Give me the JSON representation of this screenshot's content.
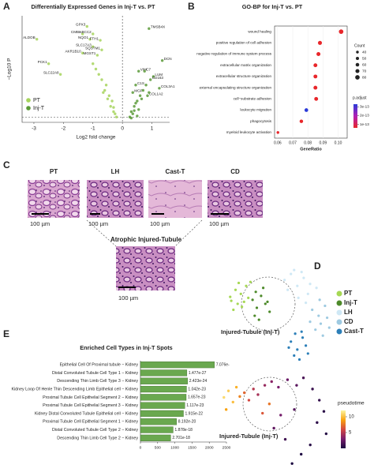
{
  "panel_labels": [
    "A",
    "B",
    "C",
    "D",
    "E"
  ],
  "histology": {
    "labels": [
      "PT",
      "LH",
      "Cast-T",
      "CD"
    ],
    "scale_label": "100 µm",
    "injured_title": "Atrophic Injured-Tubule"
  },
  "chart_data": [
    {
      "type": "volcano",
      "title": "Differentially Expressed Genes in Inj-T vs. PT",
      "x_label": "Log2 fold change",
      "y_label": "−Log10 P",
      "xlim": [
        -3.4,
        1.6
      ],
      "ylim": [
        0,
        100
      ],
      "xticks": [
        -3,
        -2,
        -1,
        0,
        1
      ],
      "hline": 5,
      "vline": 0,
      "legend": "lower left",
      "series": [
        {
          "name": "PT",
          "color": "#a6d45c",
          "x": [
            -2.9,
            -2.5,
            -2.1,
            -1.2,
            -1.35,
            -1.0,
            -1.1,
            -0.75,
            -1.0,
            -0.7,
            -1.35,
            -0.85,
            -0.6,
            -0.5,
            -0.4,
            -0.3,
            -0.7,
            -0.9,
            -0.55,
            -0.35,
            -0.25,
            -0.8,
            -0.45,
            -0.2,
            -1.0,
            -0.65,
            -0.3
          ],
          "values": [
            78,
            55,
            45,
            90,
            83,
            83,
            78,
            77,
            71,
            68,
            65,
            63,
            30,
            22,
            15,
            10,
            40,
            50,
            35,
            20,
            8,
            45,
            25,
            5,
            55,
            28,
            14
          ],
          "labels": [
            "ALDOB",
            "PCK1",
            "SLC22A8",
            "GPX3",
            "CMBL",
            "ABCC2",
            "NQO1",
            "FTH1",
            "SLC17A3",
            "SQSTM1",
            "AKR1B10",
            "MGST1",
            null,
            null,
            null,
            null,
            null,
            null,
            null,
            null,
            null,
            null,
            null,
            null,
            null,
            null,
            null
          ]
        },
        {
          "name": "Inj-T",
          "color": "#5b9a38",
          "x": [
            0.9,
            1.35,
            0.55,
            0.75,
            1.05,
            0.95,
            0.45,
            1.25,
            0.35,
            0.85,
            0.3,
            0.4,
            0.5,
            0.35,
            0.6,
            0.7,
            0.45,
            0.25,
            0.55,
            0.8,
            0.65,
            0.3,
            0.9,
            0.5,
            0.4
          ],
          "values": [
            88,
            58,
            48,
            48,
            43,
            40,
            35,
            32,
            28,
            25,
            10,
            15,
            20,
            8,
            25,
            30,
            18,
            5,
            12,
            35,
            22,
            4,
            28,
            6,
            11
          ],
          "labels": [
            "TMSB4X",
            "DCN",
            "VIM",
            "C7",
            "LUM",
            "CD163",
            "C1S",
            "COL3A1",
            "MGP",
            "COL1A2",
            null,
            null,
            null,
            null,
            null,
            null,
            null,
            null,
            null,
            null,
            null,
            null,
            null,
            null,
            null
          ]
        }
      ]
    },
    {
      "type": "dot",
      "title": "GO-BP for Inj-T vs. PT",
      "x_label": "GeneRatio",
      "categories": [
        "wound healing",
        "positive regulation of cell adhesion",
        "negative regulation of immune system process",
        "extracellular matrix organization",
        "extracellular structure organization",
        "external encapsulating structure organization",
        "cell−substrate adhesion",
        "leukocyte migration",
        "phagocytosis",
        "myeloid leukocyte activation"
      ],
      "values": [
        0.102,
        0.088,
        0.087,
        0.085,
        0.085,
        0.085,
        0.0855,
        0.079,
        0.0757,
        0.0602
      ],
      "counts": [
        80,
        70,
        68,
        66,
        66,
        66,
        66,
        62,
        58,
        40
      ],
      "colors": [
        "#e8262a",
        "#e8262a",
        "#e8262a",
        "#e8262a",
        "#e8262a",
        "#e8262a",
        "#e8262a",
        "#2a3ad8",
        "#e8262a",
        "#e8262a"
      ],
      "xlim": [
        0.058,
        0.106
      ],
      "xticks": [
        0.06,
        0.07,
        0.08,
        0.09,
        {
          "value": 0.1,
          "label": "0.10"
        }
      ],
      "size_legend": {
        "title": "Count",
        "values": [
          40,
          50,
          60,
          70,
          80
        ]
      },
      "color_legend": {
        "title": "p.adjust",
        "lim": [
          6e-14,
          3.3e-13
        ],
        "colors": [
          "#e8262a",
          "#b21fb5",
          "#2a3ad8"
        ],
        "ticks": [
          {
            "value": 3e-13,
            "label": "3e-13"
          },
          {
            "value": 2e-13,
            "label": "2e-13"
          },
          {
            "value": 1e-13,
            "label": "1e-13"
          }
        ]
      }
    },
    {
      "type": "umap",
      "annotation": "Injured-Tubule (Inj-T)",
      "xlim": [
        0,
        10
      ],
      "ylim": [
        0,
        10
      ],
      "series": [
        {
          "name": "PT",
          "color": "#a6d854",
          "x": [
            0.5,
            1.0,
            1.5,
            1.2,
            2.0,
            0.8,
            1.8,
            2.4,
            1.3,
            0.6,
            2.2,
            1.6
          ],
          "values": [
            6.5,
            7.2,
            6.8,
            5.8,
            7.6,
            5.2,
            6.0,
            8.0,
            7.9,
            6.1,
            6.4,
            5.5
          ]
        },
        {
          "name": "Inj-T",
          "color": "#4d8a2a",
          "x": [
            2.6,
            3.0,
            3.4,
            2.8,
            3.8,
            4.2,
            3.2,
            2.9,
            3.6,
            4.0
          ],
          "values": [
            6.2,
            5.4,
            6.6,
            4.6,
            5.8,
            5.0,
            4.2,
            7.0,
            7.4,
            6.0
          ]
        },
        {
          "name": "LH",
          "color": "#cfe8f5",
          "x": [
            5.6,
            6.2,
            6.8,
            7.4,
            8.0,
            6.5,
            7.2,
            5.9,
            7.8,
            8.6,
            6.9,
            7.6
          ],
          "values": [
            8.2,
            8.8,
            7.6,
            8.4,
            7.8,
            9.2,
            9.0,
            7.2,
            6.8,
            7.4,
            6.4,
            5.9
          ]
        },
        {
          "name": "CD",
          "color": "#9ecae1",
          "x": [
            8.2,
            8.8,
            9.4,
            9.0,
            8.5,
            9.6,
            9.2,
            8.0,
            8.9,
            9.8
          ],
          "values": [
            5.2,
            4.6,
            5.6,
            3.8,
            3.2,
            4.4,
            2.6,
            4.0,
            6.2,
            3.4
          ]
        },
        {
          "name": "Cast-T",
          "color": "#2c7fb8",
          "x": [
            6.2,
            6.8,
            7.3,
            6.5,
            7.0,
            7.6,
            6.0,
            7.8,
            6.6,
            7.2
          ],
          "values": [
            2.0,
            1.2,
            2.4,
            0.6,
            0.2,
            1.6,
            1.4,
            0.8,
            2.8,
            3.0
          ]
        }
      ]
    },
    {
      "type": "pseudotime",
      "annotation": "Injured-Tubule (Inj-T)",
      "xlim": [
        0,
        10
      ],
      "ylim": [
        0,
        10
      ],
      "x": [
        0.4,
        0.8,
        1.2,
        0.6,
        1.5,
        1.8,
        2.2,
        2.6,
        3.0,
        3.4,
        4.0,
        4.6,
        5.2,
        6.0,
        6.8,
        7.4,
        8.2,
        8.8,
        9.2,
        8.6,
        9.4,
        8.0,
        7.2,
        6.4,
        5.8,
        4.8,
        5.4,
        6.6,
        3.8,
        4.4
      ],
      "values": [
        7.5,
        8.2,
        7.0,
        6.2,
        8.6,
        7.6,
        8.0,
        7.2,
        8.4,
        7.8,
        8.8,
        9.2,
        8.6,
        9.4,
        8.8,
        9.6,
        8.4,
        7.2,
        6.0,
        4.8,
        3.6,
        2.4,
        1.4,
        0.4,
        3.0,
        4.2,
        5.6,
        6.2,
        5.8,
        6.8
      ],
      "pseudotime": [
        11,
        10.5,
        10,
        9,
        9.5,
        8,
        7,
        6,
        5,
        4.5,
        4,
        3.5,
        3,
        2.5,
        2,
        1.5,
        1,
        0.8,
        0.5,
        0.6,
        0.3,
        0.4,
        0.2,
        0.1,
        1.2,
        2.2,
        2.8,
        1.8,
        6.5,
        7.5
      ],
      "colorbar": {
        "title": "pseudotime",
        "lim": [
          0,
          12
        ],
        "ticks": [
          5,
          10
        ],
        "colors": [
          "#1b0c41",
          "#7a1d6d",
          "#d44842",
          "#f9a310",
          "#fcf5a0"
        ]
      }
    },
    {
      "type": "hbar",
      "title": "Enriched Cell Types in Inj-T Spots",
      "color": "#6aa84f",
      "categories": [
        "Epithelial Cell Of Proximal tubule − Kidney",
        "Distal Convoluted Tubule Cell Type 1 − Kidney",
        "Descending Thin Limb Cell Type 3 − Kidney",
        "Kidney Loop Of Henle Thin Descending Limb Epithelial cell − Kidney",
        "Proximal Tubule Cell Epithelial Segment 2 − Kidney",
        "Proximal Tubule Cell Epithelial Segment 3 − Kidney",
        "Kidney Distal Convoluted Tubule Epithelial cell − Kidney",
        "Proximal Tubule Cell Epithelial Segment 1 − Kidney",
        "Distal Convoluted Tubule Cell Type 2 − Kidney",
        "Descending Thin Limb Cell Type 2 − Kidney"
      ],
      "values": [
        2150,
        1350,
        1370,
        1340,
        1330,
        1290,
        1250,
        1050,
        950,
        880
      ],
      "pvalue_labels": [
        "7.076e-",
        "1.477e-27",
        "2.423e-24",
        "1.042e-23",
        "1.657e-23",
        "1.117e-23",
        "1.915e-22",
        "8.192e-20",
        "1.878e-18",
        "2.701e-18"
      ],
      "xlim": [
        0,
        2500
      ],
      "xticks": [
        0,
        500,
        1000,
        1500,
        2000,
        2500
      ]
    }
  ]
}
